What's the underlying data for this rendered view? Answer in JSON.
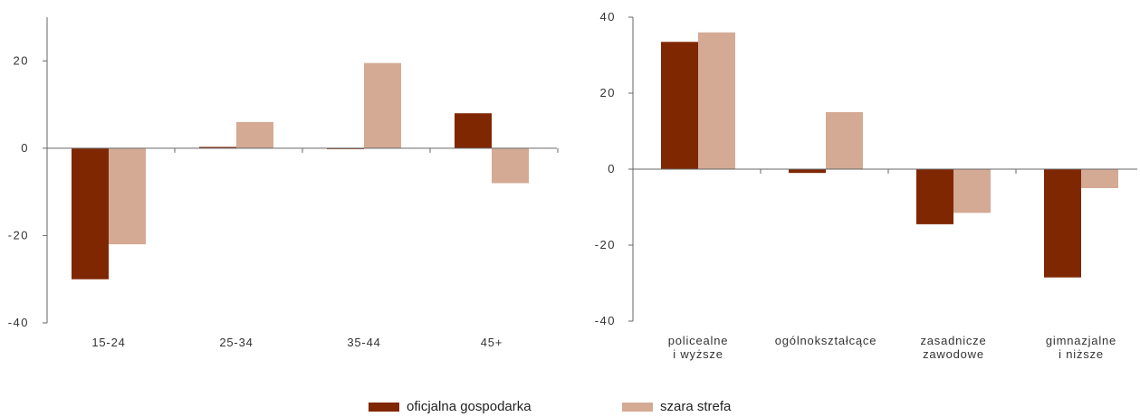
{
  "colors": {
    "series1": "#7f2700",
    "series2": "#d4aa94",
    "axis": "#666666"
  },
  "legend": {
    "series1": "oficjalna gospodarka",
    "series2": "szara strefa"
  },
  "chart_data": [
    {
      "type": "bar",
      "categories": [
        [
          "15-24"
        ],
        [
          "25-34"
        ],
        [
          "35-44"
        ],
        [
          "45+"
        ]
      ],
      "series": [
        {
          "name": "oficjalna gospodarka",
          "values": [
            -30,
            0.3,
            -0.2,
            8
          ]
        },
        {
          "name": "szara strefa",
          "values": [
            -22,
            6,
            19.5,
            -8
          ]
        }
      ],
      "ylim": [
        -40,
        30
      ],
      "yticks": [
        -40,
        -20,
        0,
        20
      ],
      "ytick_labels": [
        "-40",
        "-20",
        "0",
        "20"
      ],
      "title": "",
      "xlabel": "",
      "ylabel": ""
    },
    {
      "type": "bar",
      "categories": [
        [
          "policealne",
          "i wyższe"
        ],
        [
          "ogólnokształcące"
        ],
        [
          "zasadnicze",
          "zawodowe"
        ],
        [
          "gimnazjalne",
          "i niższe"
        ]
      ],
      "series": [
        {
          "name": "oficjalna gospodarka",
          "values": [
            33.5,
            -1,
            -14.5,
            -28.5
          ]
        },
        {
          "name": "szara strefa",
          "values": [
            36,
            15,
            -11.5,
            -5
          ]
        }
      ],
      "ylim": [
        -40,
        40
      ],
      "yticks": [
        -40,
        -20,
        0,
        20,
        40
      ],
      "ytick_labels": [
        "-40",
        "-20",
        "0",
        "20",
        "40"
      ],
      "title": "",
      "xlabel": "",
      "ylabel": ""
    }
  ]
}
